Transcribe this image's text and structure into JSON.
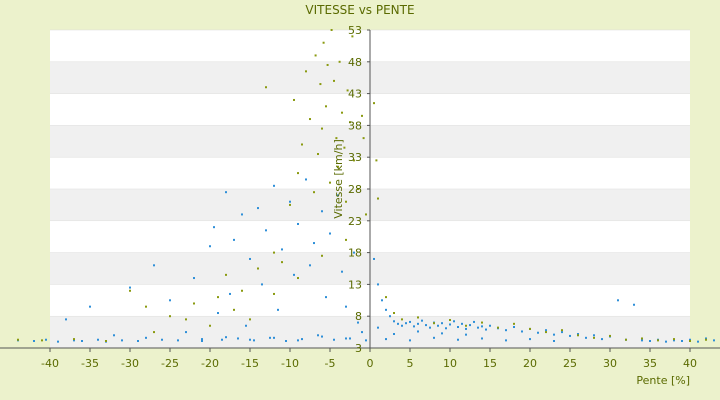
{
  "chart_data": {
    "type": "scatter",
    "title": "VITESSE vs PENTE",
    "xlabel": "Pente [%]",
    "ylabel": "Vitesse [km/h]",
    "xlim": [
      -40,
      40
    ],
    "ylim": [
      3,
      53
    ],
    "x_ticks": [
      "-40",
      "-35",
      "-30",
      "-25",
      "-20",
      "-15",
      "-10",
      "-5",
      "0",
      "5",
      "10",
      "15",
      "20",
      "25",
      "30",
      "35",
      "40"
    ],
    "y_ticks": [
      "53",
      "48",
      "43",
      "38",
      "33",
      "28",
      "23",
      "18",
      "13",
      "8",
      "3"
    ],
    "grid": true,
    "legend": "none",
    "colors": {
      "background": "#ecf2cc",
      "band_light": "#ffffff",
      "band_dark": "#f0f0f0",
      "text": "#5a6a00",
      "series_blue": "#2e8fd8",
      "series_olive": "#8a9a10"
    },
    "series": [
      {
        "color": "#2e8fd8",
        "points": [
          [
            -44,
            4.2
          ],
          [
            -42,
            4.1
          ],
          [
            -40.5,
            4.3
          ],
          [
            -39,
            4.0
          ],
          [
            -38,
            7.5
          ],
          [
            -37,
            4.2
          ],
          [
            -36,
            4.1
          ],
          [
            -35,
            9.5
          ],
          [
            -34,
            4.3
          ],
          [
            -33,
            4.0
          ],
          [
            -32,
            5.0
          ],
          [
            -31,
            4.2
          ],
          [
            -30,
            12.5
          ],
          [
            -29,
            4.1
          ],
          [
            -28,
            4.6
          ],
          [
            -27,
            16.0
          ],
          [
            -26,
            4.3
          ],
          [
            -25,
            10.5
          ],
          [
            -24,
            4.2
          ],
          [
            -23,
            5.5
          ],
          [
            -22,
            14.0
          ],
          [
            -21,
            4.4
          ],
          [
            -20,
            19.0
          ],
          [
            -19.5,
            22.0
          ],
          [
            -19,
            8.5
          ],
          [
            -18.5,
            4.3
          ],
          [
            -18,
            27.5
          ],
          [
            -17.5,
            11.5
          ],
          [
            -17,
            20.0
          ],
          [
            -16.5,
            4.5
          ],
          [
            -16,
            24.0
          ],
          [
            -15.5,
            6.5
          ],
          [
            -15,
            17.0
          ],
          [
            -14.5,
            4.2
          ],
          [
            -14,
            25.0
          ],
          [
            -13.5,
            13.0
          ],
          [
            -13,
            21.5
          ],
          [
            -12.5,
            4.6
          ],
          [
            -12,
            28.5
          ],
          [
            -11.5,
            9.0
          ],
          [
            -11,
            18.5
          ],
          [
            -10.5,
            4.1
          ],
          [
            -10,
            26.0
          ],
          [
            -9.5,
            14.5
          ],
          [
            -9,
            22.5
          ],
          [
            -8.5,
            4.4
          ],
          [
            -8,
            29.5
          ],
          [
            -7.5,
            16.0
          ],
          [
            -7,
            19.5
          ],
          [
            -6.5,
            5.0
          ],
          [
            -6,
            24.5
          ],
          [
            -5.5,
            11.0
          ],
          [
            -5,
            21.0
          ],
          [
            -4.5,
            4.3
          ],
          [
            -4,
            27.0
          ],
          [
            -3.5,
            15.0
          ],
          [
            -3,
            9.5
          ],
          [
            -2.5,
            4.5
          ],
          [
            -2,
            18.0
          ],
          [
            -1.5,
            7.0
          ],
          [
            -1,
            5.5
          ],
          [
            -0.5,
            4.2
          ],
          [
            0.5,
            17.0
          ],
          [
            1,
            13.0
          ],
          [
            1.5,
            10.5
          ],
          [
            2,
            9.0
          ],
          [
            2.5,
            8.0
          ],
          [
            3,
            7.2
          ],
          [
            3.5,
            6.8
          ],
          [
            4,
            6.5
          ],
          [
            4.5,
            6.9
          ],
          [
            5,
            7.1
          ],
          [
            5.5,
            6.4
          ],
          [
            6,
            6.8
          ],
          [
            6.5,
            7.3
          ],
          [
            7,
            6.6
          ],
          [
            7.5,
            6.2
          ],
          [
            8,
            7.0
          ],
          [
            8.5,
            6.5
          ],
          [
            9,
            6.9
          ],
          [
            9.5,
            6.1
          ],
          [
            10,
            6.7
          ],
          [
            10.5,
            7.2
          ],
          [
            11,
            6.3
          ],
          [
            11.5,
            6.8
          ],
          [
            12,
            6.0
          ],
          [
            12.5,
            6.6
          ],
          [
            13,
            7.1
          ],
          [
            13.5,
            6.2
          ],
          [
            14,
            6.4
          ],
          [
            14.5,
            5.9
          ],
          [
            15,
            6.5
          ],
          [
            16,
            6.1
          ],
          [
            17,
            5.8
          ],
          [
            18,
            6.3
          ],
          [
            19,
            5.6
          ],
          [
            20,
            6.0
          ],
          [
            21,
            5.4
          ],
          [
            22,
            5.8
          ],
          [
            23,
            5.1
          ],
          [
            24,
            5.5
          ],
          [
            25,
            4.9
          ],
          [
            26,
            5.2
          ],
          [
            27,
            4.6
          ],
          [
            28,
            5.0
          ],
          [
            29,
            4.4
          ],
          [
            30,
            4.8
          ],
          [
            31,
            10.5
          ],
          [
            32,
            4.3
          ],
          [
            33,
            9.8
          ],
          [
            34,
            4.2
          ],
          [
            35,
            4.1
          ],
          [
            36,
            4.3
          ],
          [
            37,
            4.0
          ],
          [
            38,
            4.2
          ],
          [
            39,
            4.1
          ],
          [
            40,
            4.3
          ],
          [
            41,
            4.0
          ],
          [
            42,
            4.5
          ],
          [
            43,
            4.2
          ],
          [
            -3,
            4.5
          ],
          [
            -6,
            4.8
          ],
          [
            -9,
            4.2
          ],
          [
            -12,
            4.6
          ],
          [
            -15,
            4.3
          ],
          [
            -18,
            4.7
          ],
          [
            -21,
            4.1
          ],
          [
            2,
            4.4
          ],
          [
            5,
            4.2
          ],
          [
            8,
            4.6
          ],
          [
            11,
            4.3
          ],
          [
            14,
            4.5
          ],
          [
            17,
            4.2
          ],
          [
            20,
            4.4
          ],
          [
            23,
            4.1
          ],
          [
            1,
            6.2
          ],
          [
            3,
            5.2
          ],
          [
            6,
            5.6
          ],
          [
            9,
            5.3
          ],
          [
            12,
            5.1
          ]
        ]
      },
      {
        "color": "#8a9a10",
        "points": [
          [
            -44,
            4.3
          ],
          [
            -41,
            4.2
          ],
          [
            -37,
            4.4
          ],
          [
            -33,
            4.1
          ],
          [
            -30,
            12.0
          ],
          [
            -28,
            9.5
          ],
          [
            -25,
            8.0
          ],
          [
            -22,
            10.0
          ],
          [
            -20,
            6.5
          ],
          [
            -18,
            14.5
          ],
          [
            -17,
            9.0
          ],
          [
            -16,
            12.0
          ],
          [
            -15,
            7.5
          ],
          [
            -14,
            15.5
          ],
          [
            -13,
            44.0
          ],
          [
            -12,
            11.5
          ],
          [
            -11,
            16.5
          ],
          [
            -10,
            25.5
          ],
          [
            -9.5,
            42.0
          ],
          [
            -9,
            30.5
          ],
          [
            -8.5,
            35.0
          ],
          [
            -8,
            46.5
          ],
          [
            -7.5,
            39.0
          ],
          [
            -7,
            27.5
          ],
          [
            -6.8,
            49.0
          ],
          [
            -6.5,
            33.5
          ],
          [
            -6.2,
            44.5
          ],
          [
            -6,
            37.5
          ],
          [
            -5.8,
            51.0
          ],
          [
            -5.5,
            41.0
          ],
          [
            -5.3,
            47.5
          ],
          [
            -5,
            29.0
          ],
          [
            -4.8,
            53.0
          ],
          [
            -4.5,
            45.0
          ],
          [
            -4.2,
            36.0
          ],
          [
            -4,
            31.5
          ],
          [
            -3.8,
            48.0
          ],
          [
            -3.5,
            40.0
          ],
          [
            -3.2,
            34.5
          ],
          [
            -3,
            26.0
          ],
          [
            -2.8,
            43.5
          ],
          [
            -2.5,
            38.5
          ],
          [
            -2.2,
            52.0
          ],
          [
            -2,
            32.5
          ],
          [
            -1.5,
            28.0
          ],
          [
            -1,
            39.5
          ],
          [
            -0.8,
            36.0
          ],
          [
            -0.5,
            24.0
          ],
          [
            0.5,
            41.5
          ],
          [
            0.8,
            32.5
          ],
          [
            1,
            26.5
          ],
          [
            2,
            11.0
          ],
          [
            3,
            8.5
          ],
          [
            4,
            7.5
          ],
          [
            6,
            7.8
          ],
          [
            8,
            6.9
          ],
          [
            10,
            7.4
          ],
          [
            12,
            6.5
          ],
          [
            14,
            7.0
          ],
          [
            16,
            6.2
          ],
          [
            18,
            6.8
          ],
          [
            20,
            6.0
          ],
          [
            22,
            5.5
          ],
          [
            24,
            5.8
          ],
          [
            26,
            5.0
          ],
          [
            28,
            4.6
          ],
          [
            30,
            4.9
          ],
          [
            32,
            4.3
          ],
          [
            34,
            4.5
          ],
          [
            36,
            4.2
          ],
          [
            38,
            4.4
          ],
          [
            40,
            4.1
          ],
          [
            42,
            4.3
          ],
          [
            -3,
            20.0
          ],
          [
            -6,
            17.5
          ],
          [
            -9,
            14.0
          ],
          [
            -12,
            18.0
          ],
          [
            -19,
            11.0
          ],
          [
            -23,
            7.5
          ],
          [
            -27,
            5.5
          ]
        ]
      }
    ]
  }
}
